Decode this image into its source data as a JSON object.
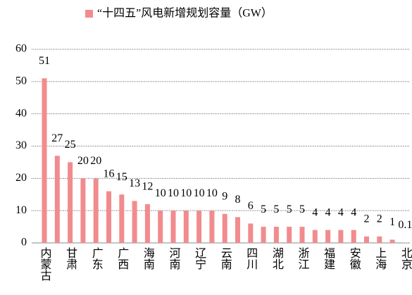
{
  "chart_data": {
    "type": "bar",
    "title": "“十四五”风电新增规划容量（GW）",
    "categories": [
      "内蒙古",
      null,
      "甘肃",
      null,
      "广东",
      null,
      "广西",
      null,
      "海南",
      null,
      "河南",
      null,
      "辽宁",
      null,
      "云南",
      null,
      "四川",
      null,
      "湖北",
      null,
      "浙江",
      null,
      "福建",
      null,
      "安徽",
      null,
      "上海",
      null,
      "北京"
    ],
    "values": [
      51,
      27,
      25,
      20,
      20,
      16,
      15,
      13,
      12,
      10,
      10,
      10,
      10,
      10,
      9,
      8,
      6,
      5,
      5,
      5,
      5,
      4,
      4,
      4,
      4,
      2,
      2,
      1,
      0.1
    ],
    "color": "#f28b8e",
    "ylim": [
      0,
      60
    ],
    "yticks": [
      0,
      10,
      20,
      30,
      40,
      50,
      60
    ],
    "grid": true
  }
}
